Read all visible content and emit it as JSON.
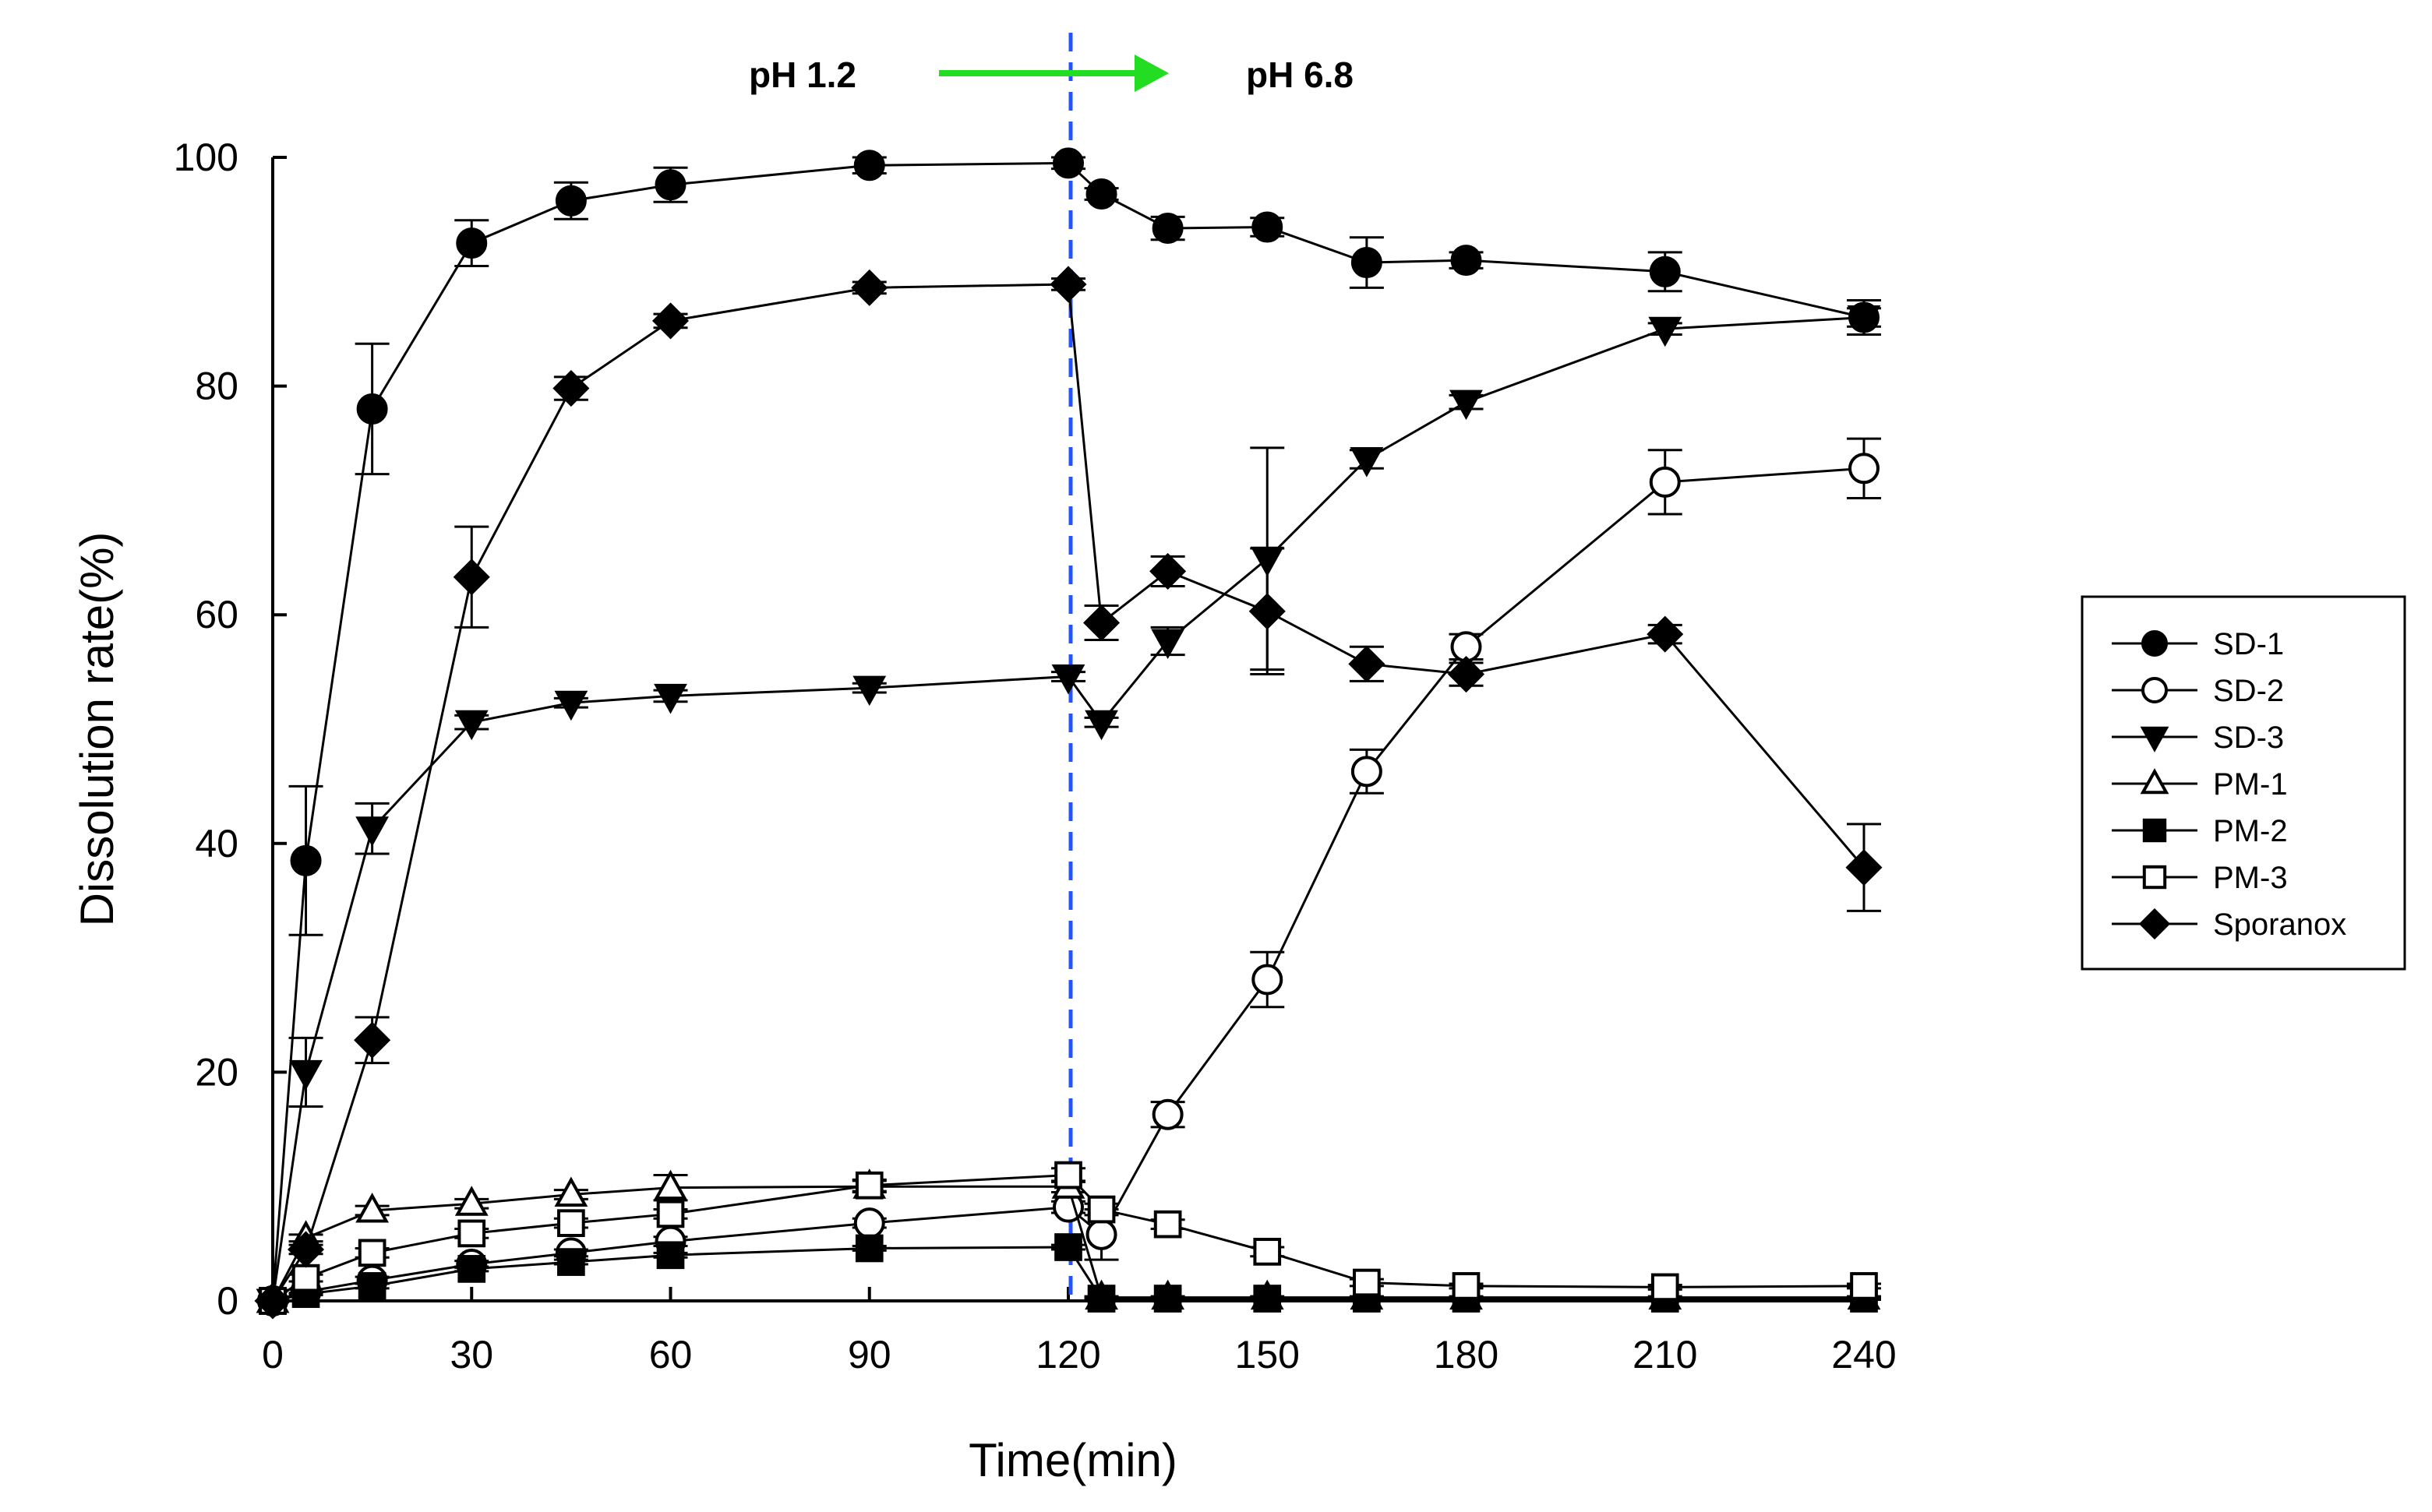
{
  "chart_data": {
    "type": "line",
    "title": "",
    "xlabel": "Time(min)",
    "ylabel": "Dissolution rate(%)",
    "xlim": [
      0,
      240
    ],
    "ylim": [
      0,
      100
    ],
    "xticks": [
      0,
      30,
      60,
      90,
      120,
      150,
      180,
      210,
      240
    ],
    "yticks": [
      0,
      20,
      40,
      60,
      80,
      100
    ],
    "grid": false,
    "legend_position": "right",
    "annotations": {
      "left_phase": "pH 1.2",
      "right_phase": "pH 6.8",
      "switch_time": 120,
      "arrow_color": "#22dd22",
      "line_color": "#2255ff"
    },
    "series": [
      {
        "name": "SD-1",
        "marker": "circle",
        "filled": true,
        "x": [
          0,
          5,
          15,
          30,
          45,
          60,
          90,
          120,
          125,
          135,
          150,
          165,
          180,
          210,
          240
        ],
        "y": [
          0,
          38.5,
          78,
          92.5,
          96.2,
          97.6,
          99.3,
          99.5,
          96.8,
          93.8,
          93.9,
          90.8,
          91,
          90,
          86
        ],
        "err": [
          0,
          6.5,
          5.7,
          2,
          1.6,
          1.5,
          0.7,
          0.5,
          0.5,
          1,
          0.8,
          2.2,
          0.7,
          1.7,
          1.5
        ]
      },
      {
        "name": "SD-2",
        "marker": "circle",
        "filled": false,
        "x": [
          0,
          5,
          15,
          30,
          45,
          60,
          90,
          120,
          125,
          135,
          150,
          165,
          180,
          210,
          240
        ],
        "y": [
          0,
          0.8,
          1.8,
          3.2,
          4.2,
          5.2,
          6.8,
          8.2,
          5.8,
          16.3,
          28.1,
          46.3,
          57.2,
          71.6,
          72.8
        ],
        "err": [
          0,
          0.2,
          0.3,
          0.3,
          0.3,
          0.4,
          0.4,
          0.5,
          2.2,
          1.1,
          2.4,
          1.9,
          1.1,
          2.8,
          2.6
        ]
      },
      {
        "name": "SD-3",
        "marker": "triangle-down",
        "filled": true,
        "x": [
          0,
          5,
          15,
          30,
          45,
          60,
          90,
          120,
          125,
          135,
          150,
          165,
          180,
          210,
          240
        ],
        "y": [
          0,
          20,
          41.3,
          50.6,
          52.3,
          52.9,
          53.6,
          54.6,
          50.6,
          57.7,
          64.9,
          73.6,
          78.6,
          85,
          86
        ],
        "err": [
          0,
          3,
          2.2,
          0.6,
          0.4,
          0.5,
          0.4,
          0.4,
          0.4,
          1.2,
          9.7,
          0.8,
          0.6,
          0.5,
          0.8
        ]
      },
      {
        "name": "PM-1",
        "marker": "triangle-up",
        "filled": false,
        "x": [
          0,
          5,
          15,
          30,
          45,
          60,
          90,
          120,
          125,
          135,
          150,
          165,
          180,
          210,
          240
        ],
        "y": [
          0,
          5.5,
          7.9,
          8.5,
          9.3,
          9.9,
          10,
          10,
          0.3,
          0.3,
          0.3,
          0.3,
          0.3,
          0.3,
          0.3
        ],
        "err": [
          0,
          0.3,
          0.4,
          0.4,
          0.4,
          1.1,
          0.5,
          0.5,
          0.1,
          0.1,
          0.1,
          0.1,
          0.1,
          0.1,
          0.1
        ]
      },
      {
        "name": "PM-2",
        "marker": "square",
        "filled": true,
        "x": [
          0,
          5,
          15,
          30,
          45,
          60,
          90,
          120,
          125,
          135,
          150,
          165,
          180,
          210,
          240
        ],
        "y": [
          0,
          0.6,
          1.3,
          2.8,
          3.4,
          4,
          4.6,
          4.7,
          0.2,
          0.2,
          0.2,
          0.2,
          0.2,
          0.2,
          0.2
        ],
        "err": [
          0,
          0.1,
          0.2,
          0.2,
          0.2,
          0.2,
          0.2,
          0.2,
          0.1,
          0.1,
          0.1,
          0.1,
          0.1,
          0.1,
          0.1
        ]
      },
      {
        "name": "PM-3",
        "marker": "square",
        "filled": false,
        "x": [
          0,
          5,
          15,
          30,
          45,
          60,
          90,
          120,
          125,
          135,
          150,
          165,
          180,
          210,
          240
        ],
        "y": [
          0,
          2,
          4.2,
          5.9,
          6.8,
          7.6,
          10.1,
          11,
          8,
          6.7,
          4.3,
          1.6,
          1.3,
          1.2,
          1.3
        ],
        "err": [
          0,
          0.3,
          0.4,
          0.4,
          0.4,
          0.4,
          0.5,
          0.6,
          0.5,
          0.4,
          0.4,
          0.3,
          0.2,
          0.2,
          0.2
        ]
      },
      {
        "name": "Sporanox",
        "marker": "diamond",
        "filled": true,
        "x": [
          0,
          5,
          15,
          30,
          45,
          60,
          90,
          120,
          125,
          135,
          150,
          165,
          180,
          210,
          240
        ],
        "y": [
          0,
          4.5,
          22.8,
          63.3,
          79.8,
          85.7,
          88.6,
          88.9,
          59.3,
          63.8,
          60.3,
          55.7,
          54.8,
          58.3,
          37.9
        ],
        "err": [
          0,
          0.4,
          2,
          4.4,
          1,
          0.6,
          0.5,
          0.5,
          1.5,
          1.3,
          5.5,
          1.5,
          1,
          0.8,
          3.8
        ]
      }
    ]
  }
}
